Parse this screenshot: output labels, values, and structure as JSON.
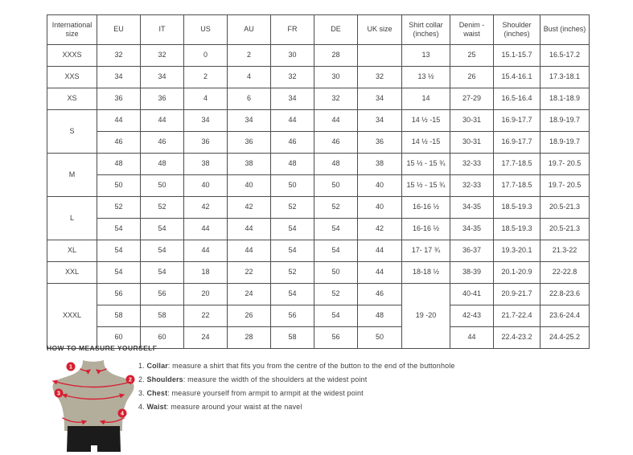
{
  "table": {
    "headers": [
      "International size",
      "EU",
      "IT",
      "US",
      "AU",
      "FR",
      "DE",
      "UK size",
      "Shirt collar (inches)",
      "Denim - waist",
      "Shoulder (inches)",
      "Bust (inches)"
    ],
    "rows": [
      {
        "cells": [
          {
            "t": "XXXS"
          },
          {
            "t": "32"
          },
          {
            "t": "32"
          },
          {
            "t": "0"
          },
          {
            "t": "2"
          },
          {
            "t": "30"
          },
          {
            "t": "28"
          },
          {
            "t": ""
          },
          {
            "t": "13"
          },
          {
            "t": "25"
          },
          {
            "t": "15.1-15.7"
          },
          {
            "t": "16.5-17.2"
          }
        ]
      },
      {
        "cells": [
          {
            "t": "XXS"
          },
          {
            "t": "34"
          },
          {
            "t": "34"
          },
          {
            "t": "2"
          },
          {
            "t": "4"
          },
          {
            "t": "32"
          },
          {
            "t": "30"
          },
          {
            "t": "32"
          },
          {
            "t": "13 ½"
          },
          {
            "t": "26"
          },
          {
            "t": "15.4-16.1"
          },
          {
            "t": "17.3-18.1"
          }
        ]
      },
      {
        "cells": [
          {
            "t": "XS"
          },
          {
            "t": "36"
          },
          {
            "t": "36"
          },
          {
            "t": "4"
          },
          {
            "t": "6"
          },
          {
            "t": "34"
          },
          {
            "t": "32"
          },
          {
            "t": "34"
          },
          {
            "t": "14"
          },
          {
            "t": "27-29"
          },
          {
            "t": "16.5-16.4"
          },
          {
            "t": "18.1-18.9"
          }
        ]
      },
      {
        "cells": [
          {
            "t": "S",
            "rs": 2
          },
          {
            "t": "44"
          },
          {
            "t": "44"
          },
          {
            "t": "34"
          },
          {
            "t": "34"
          },
          {
            "t": "44"
          },
          {
            "t": "44"
          },
          {
            "t": "34"
          },
          {
            "t": "14 ½ -15"
          },
          {
            "t": "30-31"
          },
          {
            "t": "16.9-17.7"
          },
          {
            "t": "18.9-19.7"
          }
        ]
      },
      {
        "cells": [
          {
            "t": "46"
          },
          {
            "t": "46"
          },
          {
            "t": "36"
          },
          {
            "t": "36"
          },
          {
            "t": "46"
          },
          {
            "t": "46"
          },
          {
            "t": "36"
          },
          {
            "t": "14 ½ -15"
          },
          {
            "t": "30-31"
          },
          {
            "t": "16.9-17.7"
          },
          {
            "t": "18.9-19.7"
          }
        ]
      },
      {
        "cells": [
          {
            "t": "M",
            "rs": 2
          },
          {
            "t": "48"
          },
          {
            "t": "48"
          },
          {
            "t": "38"
          },
          {
            "t": "38"
          },
          {
            "t": "48"
          },
          {
            "t": "48"
          },
          {
            "t": "38"
          },
          {
            "t": "15 ½ - 15 ¾"
          },
          {
            "t": "32-33"
          },
          {
            "t": "17.7-18.5"
          },
          {
            "t": "19.7- 20.5"
          }
        ]
      },
      {
        "cells": [
          {
            "t": "50"
          },
          {
            "t": "50"
          },
          {
            "t": "40"
          },
          {
            "t": "40"
          },
          {
            "t": "50"
          },
          {
            "t": "50"
          },
          {
            "t": "40"
          },
          {
            "t": "15 ½ - 15 ¾"
          },
          {
            "t": "32-33"
          },
          {
            "t": "17.7-18.5"
          },
          {
            "t": "19.7- 20.5"
          }
        ]
      },
      {
        "cells": [
          {
            "t": "L",
            "rs": 2
          },
          {
            "t": "52"
          },
          {
            "t": "52"
          },
          {
            "t": "42"
          },
          {
            "t": "42"
          },
          {
            "t": "52"
          },
          {
            "t": "52"
          },
          {
            "t": "40"
          },
          {
            "t": "16-16 ½"
          },
          {
            "t": "34-35"
          },
          {
            "t": "18.5-19.3"
          },
          {
            "t": "20.5-21.3"
          }
        ]
      },
      {
        "cells": [
          {
            "t": "54"
          },
          {
            "t": "54"
          },
          {
            "t": "44"
          },
          {
            "t": "44"
          },
          {
            "t": "54"
          },
          {
            "t": "54"
          },
          {
            "t": "42"
          },
          {
            "t": "16-16 ½"
          },
          {
            "t": "34-35"
          },
          {
            "t": "18.5-19.3"
          },
          {
            "t": "20.5-21.3"
          }
        ]
      },
      {
        "cells": [
          {
            "t": "XL"
          },
          {
            "t": "54"
          },
          {
            "t": "54"
          },
          {
            "t": "44"
          },
          {
            "t": "44"
          },
          {
            "t": "54"
          },
          {
            "t": "54"
          },
          {
            "t": "44"
          },
          {
            "t": "17- 17 ¾"
          },
          {
            "t": "36-37"
          },
          {
            "t": "19.3-20.1"
          },
          {
            "t": "21.3-22"
          }
        ]
      },
      {
        "cells": [
          {
            "t": "XXL"
          },
          {
            "t": "54"
          },
          {
            "t": "54"
          },
          {
            "t": "18"
          },
          {
            "t": "22"
          },
          {
            "t": "52"
          },
          {
            "t": "50"
          },
          {
            "t": "44"
          },
          {
            "t": "18-18 ½"
          },
          {
            "t": "38-39"
          },
          {
            "t": "20.1-20.9"
          },
          {
            "t": "22-22.8"
          }
        ]
      },
      {
        "cells": [
          {
            "t": "XXXL",
            "rs": 3
          },
          {
            "t": "56"
          },
          {
            "t": "56"
          },
          {
            "t": "20"
          },
          {
            "t": "24"
          },
          {
            "t": "54"
          },
          {
            "t": "52"
          },
          {
            "t": "46"
          },
          {
            "t": "19 -20",
            "rs": 3
          },
          {
            "t": "40-41"
          },
          {
            "t": "20.9-21.7"
          },
          {
            "t": "22.8-23.6"
          }
        ]
      },
      {
        "cells": [
          {
            "t": "58"
          },
          {
            "t": "58"
          },
          {
            "t": "22"
          },
          {
            "t": "26"
          },
          {
            "t": "56"
          },
          {
            "t": "54"
          },
          {
            "t": "48"
          },
          {
            "t": "42-43"
          },
          {
            "t": "21.7-22.4"
          },
          {
            "t": "23.6-24.4"
          }
        ]
      },
      {
        "cells": [
          {
            "t": "60"
          },
          {
            "t": "60"
          },
          {
            "t": "24"
          },
          {
            "t": "28"
          },
          {
            "t": "58"
          },
          {
            "t": "56"
          },
          {
            "t": "50"
          },
          {
            "t": "44"
          },
          {
            "t": "22.4-23.2"
          },
          {
            "t": "24.4-25.2"
          }
        ]
      }
    ]
  },
  "measure": {
    "heading": "HOW TO MEASURE YOURSELF",
    "items": [
      {
        "num": "1.",
        "label": "Collar",
        "text": ": measure a shirt that fits you from the centre of the button to the end of the buttonhole"
      },
      {
        "num": "2.",
        "label": "Shoulders",
        "text": ": measure the width of the shoulders at the widest point"
      },
      {
        "num": "3.",
        "label": "Chest",
        "text": ": measure yourself from armpit to armpit at the widest point"
      },
      {
        "num": "4.",
        "label": "Waist",
        "text": ": measure around your waist at the navel"
      }
    ],
    "figure_badges": [
      "1",
      "2",
      "3",
      "4"
    ]
  },
  "colors": {
    "accent_red": "#d71f32",
    "torso": "#b3ae9c",
    "shorts": "#1b1b1b",
    "text": "#3e3e3e",
    "border": "#4d4d4d"
  }
}
